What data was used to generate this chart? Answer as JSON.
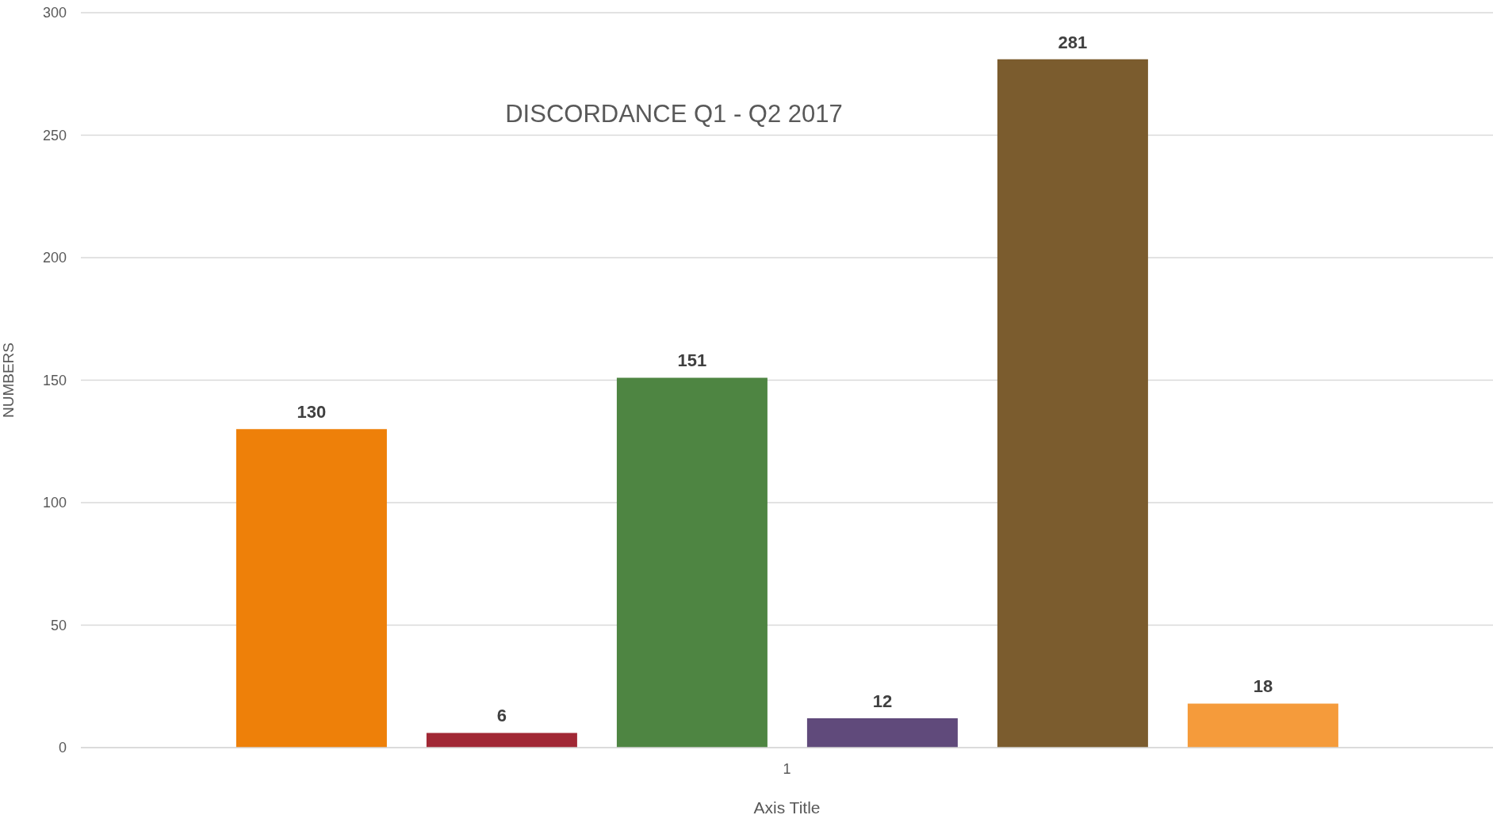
{
  "chart_data": {
    "type": "bar",
    "title": "DISCORDANCE Q1 - Q2 2017",
    "xlabel": "Axis Title",
    "ylabel": "NUMBERS",
    "categories": [
      "1"
    ],
    "series": [
      {
        "color": "#ee8009",
        "values": [
          130
        ]
      },
      {
        "color": "#a12835",
        "values": [
          6
        ]
      },
      {
        "color": "#4e8542",
        "values": [
          151
        ]
      },
      {
        "color": "#604a7b",
        "values": [
          12
        ]
      },
      {
        "color": "#7b5c2e",
        "values": [
          281
        ]
      },
      {
        "color": "#f59b3b",
        "values": [
          18
        ]
      }
    ],
    "ylim": [
      0,
      300
    ],
    "yticks": [
      0,
      50,
      100,
      150,
      200,
      250,
      300
    ],
    "grid": "y",
    "data_labels": true,
    "legend": false
  }
}
